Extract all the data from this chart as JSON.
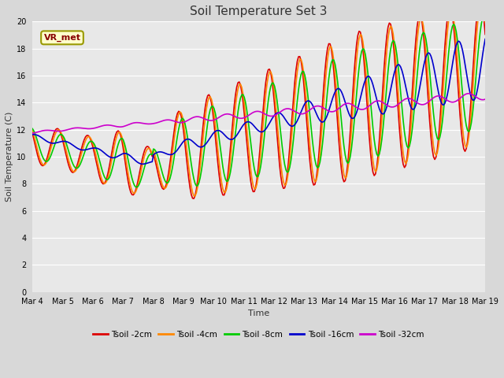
{
  "title": "Soil Temperature Set 3",
  "xlabel": "Time",
  "ylabel": "Soil Temperature (C)",
  "ylim": [
    0,
    20
  ],
  "yticks": [
    0,
    2,
    4,
    6,
    8,
    10,
    12,
    14,
    16,
    18,
    20
  ],
  "xtick_labels": [
    "Mar 4",
    "Mar 5",
    "Mar 6",
    "Mar 7",
    "Mar 8",
    "Mar 9",
    "Mar 10",
    "Mar 11",
    "Mar 12",
    "Mar 13",
    "Mar 14",
    "Mar 15",
    "Mar 16",
    "Mar 17",
    "Mar 18",
    "Mar 19"
  ],
  "fig_bg_color": "#d8d8d8",
  "plot_bg_color": "#e8e8e8",
  "grid_color": "#ffffff",
  "series": [
    {
      "label": "Tsoil -2cm",
      "color": "#dd0000",
      "lw": 1.2
    },
    {
      "label": "Tsoil -4cm",
      "color": "#ff8800",
      "lw": 1.2
    },
    {
      "label": "Tsoil -8cm",
      "color": "#00cc00",
      "lw": 1.2
    },
    {
      "label": "Tsoil -16cm",
      "color": "#0000cc",
      "lw": 1.2
    },
    {
      "label": "Tsoil -32cm",
      "color": "#cc00cc",
      "lw": 1.2
    }
  ],
  "annotation_text": "VR_met",
  "annotation_bbox": {
    "boxstyle": "round,pad=0.3",
    "facecolor": "#ffffcc",
    "edgecolor": "#999900",
    "linewidth": 1.5
  },
  "annotation_color": "#880000",
  "annotation_fontsize": 8,
  "title_fontsize": 11,
  "label_fontsize": 8,
  "tick_fontsize": 7
}
